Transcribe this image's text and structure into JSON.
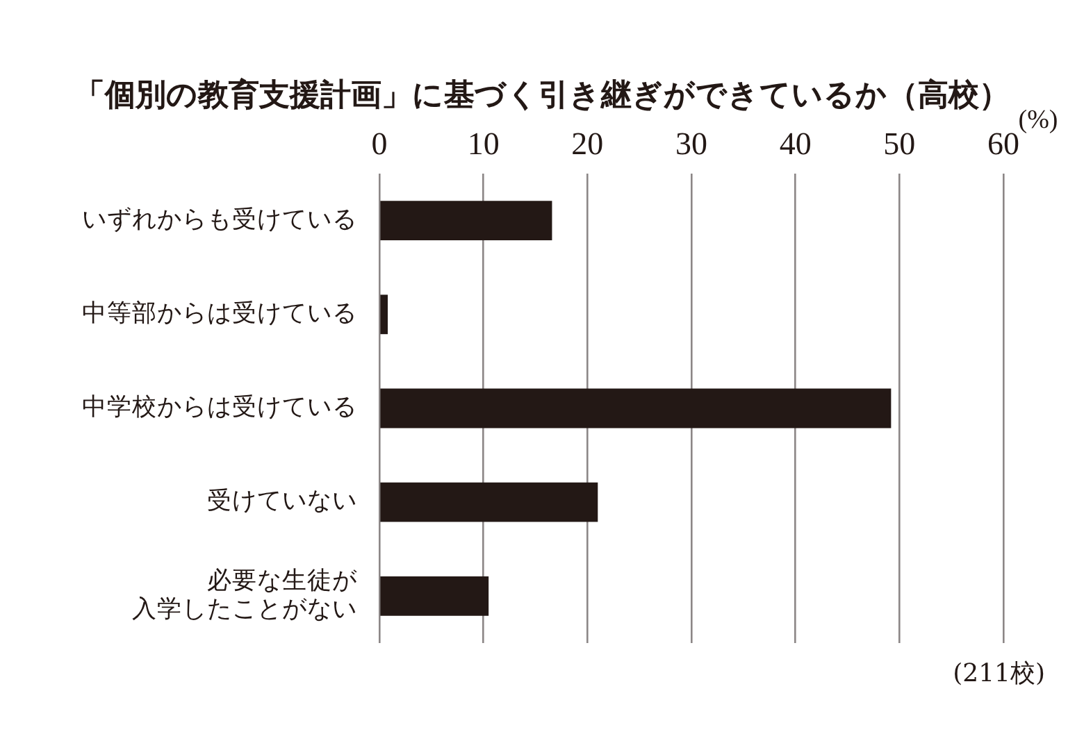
{
  "chart_data": {
    "type": "bar",
    "orientation": "horizontal",
    "title": "「個別の教育支援計画」に基づく引き継ぎができているか（高校）",
    "xlabel": "(%)",
    "annotations": [
      "(211校)"
    ],
    "categories": [
      "いずれからも受けている",
      "中等部からは受けている",
      "中学校からは受けている",
      "受けていない",
      "必要な生徒が入学したことがない"
    ],
    "values": [
      16.6,
      0.8,
      49.2,
      21.0,
      10.5
    ],
    "color": "#231815",
    "xlim": [
      0,
      60
    ],
    "xticks": [
      0,
      10,
      20,
      30,
      40,
      50,
      60
    ],
    "grid": "x"
  }
}
